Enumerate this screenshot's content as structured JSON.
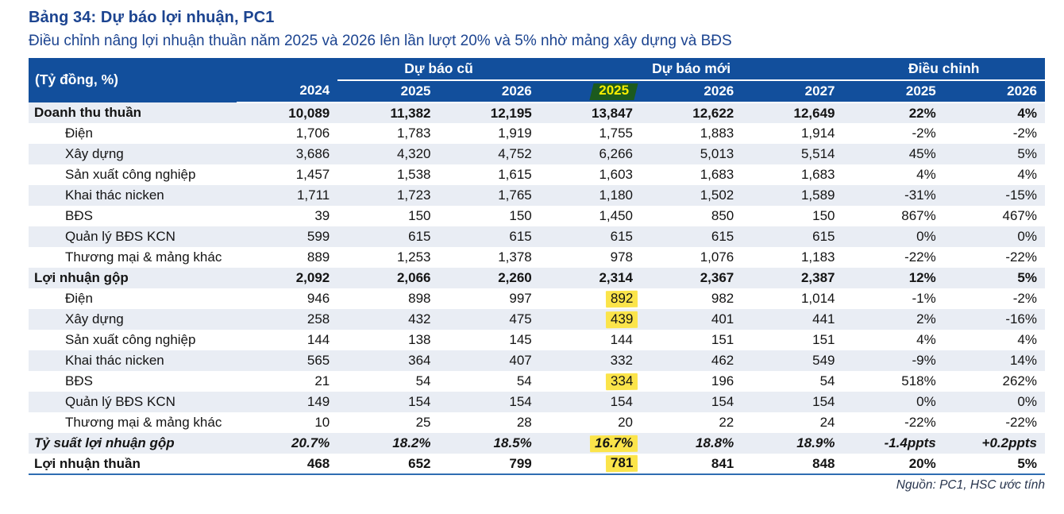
{
  "title": "Bảng 34: Dự báo lợi nhuận, PC1",
  "subtitle": "Điều chỉnh nâng lợi nhuận thuần năm 2025 và 2026 lên lần lượt 20% và 5% nhờ mảng xây dựng và BĐS",
  "source": "Nguồn: PC1, HSC ước tính",
  "colors": {
    "header_bg": "#124f9c",
    "title_color": "#1c4490",
    "row_alt": "#e9edf4",
    "hl_yellow": "#fbe44a",
    "hl_green_bg": "#1c5a1e",
    "hl_green_text": "#f8ee00",
    "border_blue": "#2f6db2",
    "text_color": "#141414",
    "source_color": "#27344d"
  },
  "table": {
    "unit_label": "(Tỷ đồng, %)",
    "groups": [
      {
        "label": "",
        "span": 1
      },
      {
        "label": "Dự báo cũ",
        "span": 2
      },
      {
        "label": "Dự báo mới",
        "span": 3
      },
      {
        "label": "Điều chỉnh",
        "span": 2
      }
    ],
    "years": [
      {
        "label": "2024"
      },
      {
        "label": "2025"
      },
      {
        "label": "2026"
      },
      {
        "label": "2025",
        "highlight": true
      },
      {
        "label": "2026"
      },
      {
        "label": "2027"
      },
      {
        "label": "2025"
      },
      {
        "label": "2026"
      }
    ],
    "rows": [
      {
        "label": "Doanh thu thuần",
        "style": "bold",
        "indent": false,
        "values": [
          "10,089",
          "11,382",
          "12,195",
          "13,847",
          "12,622",
          "12,649",
          "22%",
          "4%"
        ]
      },
      {
        "label": "Điện",
        "indent": true,
        "values": [
          "1,706",
          "1,783",
          "1,919",
          "1,755",
          "1,883",
          "1,914",
          "-2%",
          "-2%"
        ]
      },
      {
        "label": "Xây dựng",
        "indent": true,
        "values": [
          "3,686",
          "4,320",
          "4,752",
          "6,266",
          "5,013",
          "5,514",
          "45%",
          "5%"
        ]
      },
      {
        "label": "Sản xuất công nghiệp",
        "indent": true,
        "values": [
          "1,457",
          "1,538",
          "1,615",
          "1,603",
          "1,683",
          "1,683",
          "4%",
          "4%"
        ]
      },
      {
        "label": "Khai thác nicken",
        "indent": true,
        "values": [
          "1,711",
          "1,723",
          "1,765",
          "1,180",
          "1,502",
          "1,589",
          "-31%",
          "-15%"
        ]
      },
      {
        "label": "BĐS",
        "indent": true,
        "values": [
          "39",
          "150",
          "150",
          "1,450",
          "850",
          "150",
          "867%",
          "467%"
        ]
      },
      {
        "label": "Quản lý BĐS KCN",
        "indent": true,
        "values": [
          "599",
          "615",
          "615",
          "615",
          "615",
          "615",
          "0%",
          "0%"
        ]
      },
      {
        "label": "Thương mại & mảng khác",
        "indent": true,
        "values": [
          "889",
          "1,253",
          "1,378",
          "978",
          "1,076",
          "1,183",
          "-22%",
          "-22%"
        ]
      },
      {
        "label": "Lợi nhuận gộp",
        "style": "bold",
        "indent": false,
        "values": [
          "2,092",
          "2,066",
          "2,260",
          "2,314",
          "2,367",
          "2,387",
          "12%",
          "5%"
        ]
      },
      {
        "label": "Điện",
        "indent": true,
        "values": [
          "946",
          "898",
          "997",
          "892",
          "982",
          "1,014",
          "-1%",
          "-2%"
        ],
        "highlight_cols": [
          3
        ]
      },
      {
        "label": "Xây dựng",
        "indent": true,
        "values": [
          "258",
          "432",
          "475",
          "439",
          "401",
          "441",
          "2%",
          "-16%"
        ],
        "highlight_cols": [
          3
        ]
      },
      {
        "label": "Sản xuất công nghiệp",
        "indent": true,
        "values": [
          "144",
          "138",
          "145",
          "144",
          "151",
          "151",
          "4%",
          "4%"
        ]
      },
      {
        "label": "Khai thác nicken",
        "indent": true,
        "values": [
          "565",
          "364",
          "407",
          "332",
          "462",
          "549",
          "-9%",
          "14%"
        ]
      },
      {
        "label": "BĐS",
        "indent": true,
        "values": [
          "21",
          "54",
          "54",
          "334",
          "196",
          "54",
          "518%",
          "262%"
        ],
        "highlight_cols": [
          3
        ]
      },
      {
        "label": "Quản lý BĐS KCN",
        "indent": true,
        "values": [
          "149",
          "154",
          "154",
          "154",
          "154",
          "154",
          "0%",
          "0%"
        ]
      },
      {
        "label": "Thương mại & mảng khác",
        "indent": true,
        "values": [
          "10",
          "25",
          "28",
          "20",
          "22",
          "24",
          "-22%",
          "-22%"
        ]
      },
      {
        "label": "Tỷ suất lợi nhuận gộp",
        "style": "bold-italic",
        "indent": false,
        "values": [
          "20.7%",
          "18.2%",
          "18.5%",
          "16.7%",
          "18.8%",
          "18.9%",
          "-1.4ppts",
          "+0.2ppts"
        ],
        "highlight_cols": [
          3
        ]
      },
      {
        "label": "Lợi nhuận thuần",
        "style": "bold",
        "indent": false,
        "values": [
          "468",
          "652",
          "799",
          "781",
          "841",
          "848",
          "20%",
          "5%"
        ],
        "highlight_cols": [
          3
        ]
      }
    ]
  }
}
